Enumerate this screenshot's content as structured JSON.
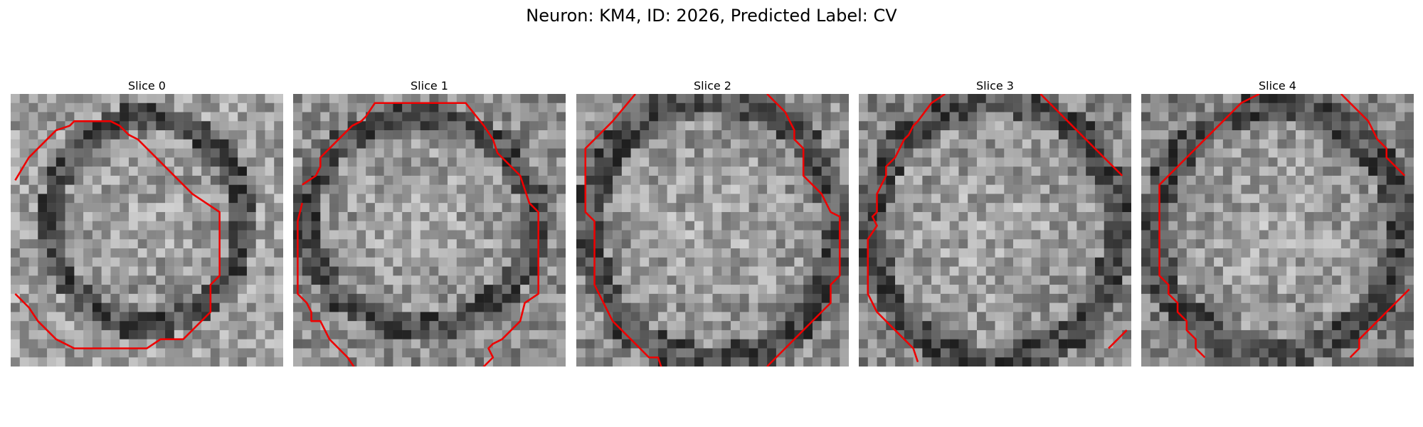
{
  "figure": {
    "title": "Neuron: KM4, ID: 2026, Predicted Label: CV"
  },
  "contour_color": "#ee0000",
  "slices": [
    {
      "title": "Slice 0"
    },
    {
      "title": "Slice 1"
    },
    {
      "title": "Slice 2"
    },
    {
      "title": "Slice 3"
    },
    {
      "title": "Slice 4"
    }
  ]
}
